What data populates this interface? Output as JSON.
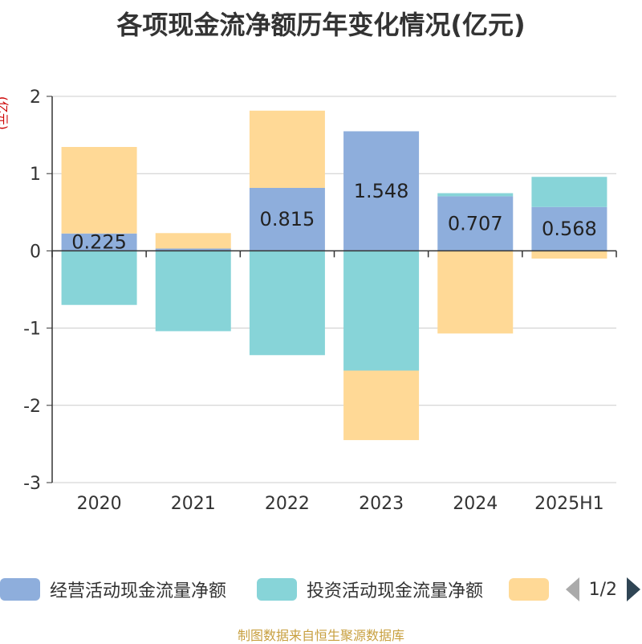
{
  "title": "各项现金流净额历年变化情况(亿元)",
  "unit_label": "(亿元)",
  "source": "制图数据来自恒生聚源数据库",
  "legend": {
    "items": [
      {
        "label": "经营活动现金流量净额",
        "color": "#8eaedc"
      },
      {
        "label": "投资活动现金流量净额",
        "color": "#87d4d8"
      },
      {
        "label": "",
        "color": "#ffd996"
      }
    ],
    "page": "1/2"
  },
  "chart_data": {
    "type": "bar",
    "stacked": true,
    "categories": [
      "2020",
      "2021",
      "2022",
      "2023",
      "2024",
      "2025H1"
    ],
    "ylim": [
      -3,
      2
    ],
    "yticks": [
      "2",
      "1",
      "0",
      "-1",
      "-2",
      "-3"
    ],
    "grid": true,
    "legend_position": "bottom",
    "series": [
      {
        "name": "经营活动现金流量净额",
        "color": "#8eaedc",
        "values": [
          0.225,
          0.03,
          0.815,
          1.548,
          0.707,
          0.568
        ],
        "labels": [
          "0.225",
          "",
          "0.815",
          "1.548",
          "0.707",
          "0.568"
        ]
      },
      {
        "name": "投资活动现金流量净额",
        "color": "#87d4d8",
        "values": [
          -0.7,
          -1.04,
          -1.35,
          -1.55,
          0.04,
          0.39
        ]
      },
      {
        "color": "#ffd996",
        "values": [
          1.12,
          0.2,
          1.0,
          -0.9,
          -1.07,
          -0.1
        ]
      }
    ]
  }
}
